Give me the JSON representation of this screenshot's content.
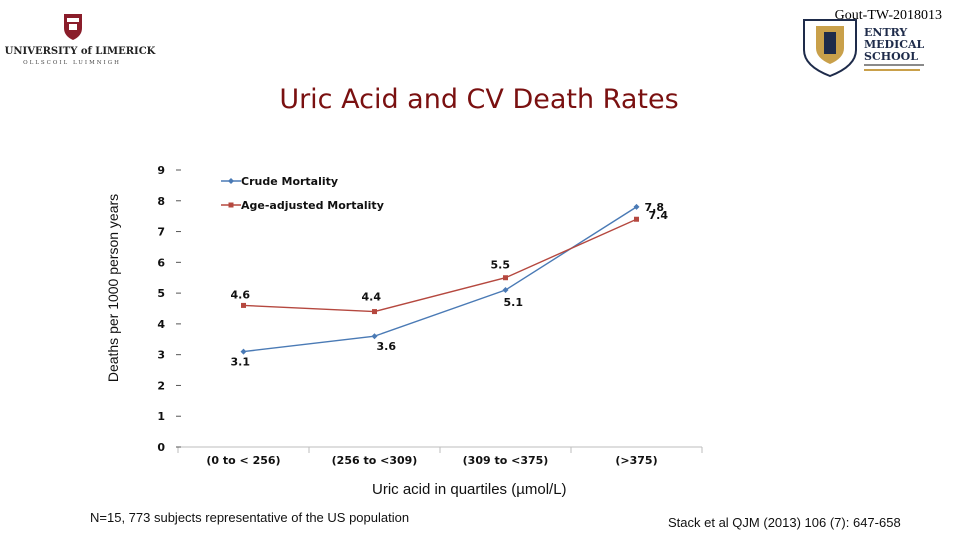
{
  "header": {
    "corner_tag": "Gout-TW-2018013",
    "left_logo_text": "UNIVERSITY of LIMERICK",
    "left_logo_subtext": "OLLSCOIL LUIMNIGH",
    "right_logo_lines": [
      "ENTRY",
      "MEDICAL",
      "SCHOOL"
    ]
  },
  "slide": {
    "title": "Uric Acid and CV Death Rates",
    "footnote": "N=15, 773 subjects representative of the US population",
    "citation": "Stack et al QJM (2013) 106 (7): 647-658"
  },
  "colors": {
    "title": "#7a1010",
    "crude": "#4a7ab5",
    "adjusted": "#b5483f"
  },
  "chart_data": {
    "type": "line",
    "title": "Uric Acid and CV Death Rates",
    "xlabel": "Uric acid in quartiles (µmol/L)",
    "ylabel": "Deaths per 1000 person years",
    "categories": [
      "(0 to < 256)",
      "(256 to <309)",
      "(309 to <375)",
      "(>375)"
    ],
    "ylim": [
      0,
      9
    ],
    "yticks": [
      "0",
      "1",
      "2",
      "3",
      "4",
      "5",
      "6",
      "7",
      "8",
      "9"
    ],
    "grid": false,
    "legend_position": "top-left",
    "series": [
      {
        "name": "Crude Mortality",
        "values": [
          3.1,
          3.6,
          5.1,
          7.8
        ],
        "labels": [
          "3.1",
          "3.6",
          "5.1",
          "7.8"
        ]
      },
      {
        "name": "Age-adjusted Mortality",
        "values": [
          4.6,
          4.4,
          5.5,
          7.4
        ],
        "labels": [
          "4.6",
          "4.4",
          "5.5",
          "7.4"
        ]
      }
    ]
  }
}
